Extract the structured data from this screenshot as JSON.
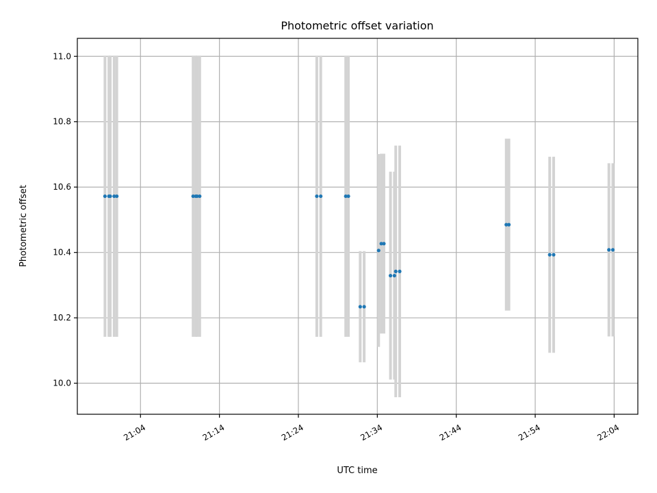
{
  "chart_data": {
    "type": "scatter",
    "title": "Photometric offset variation",
    "xlabel": "UTC time",
    "ylabel": "Photometric offset",
    "xlim": [
      "20:56:00",
      "22:07:00"
    ],
    "ylim": [
      9.905,
      11.055
    ],
    "x_ticks": [
      "21:04",
      "21:14",
      "21:24",
      "21:34",
      "21:44",
      "21:54",
      "22:04"
    ],
    "y_ticks": [
      "10.0",
      "10.2",
      "10.4",
      "10.6",
      "10.8",
      "11.0"
    ],
    "grid": true,
    "errorbar_color": "#d3d3d3",
    "marker_color": "#1f77b4",
    "points": [
      {
        "t": "20:59:30",
        "y": 10.572,
        "err": 0.43
      },
      {
        "t": "21:00:00",
        "y": 10.572,
        "err": 0.43
      },
      {
        "t": "21:00:10",
        "y": 10.572,
        "err": 0.43
      },
      {
        "t": "21:00:40",
        "y": 10.572,
        "err": 0.43
      },
      {
        "t": "21:01:00",
        "y": 10.572,
        "err": 0.43
      },
      {
        "t": "21:10:40",
        "y": 10.572,
        "err": 0.43
      },
      {
        "t": "21:11:00",
        "y": 10.572,
        "err": 0.43
      },
      {
        "t": "21:11:10",
        "y": 10.572,
        "err": 0.43
      },
      {
        "t": "21:11:30",
        "y": 10.572,
        "err": 0.43
      },
      {
        "t": "21:26:20",
        "y": 10.572,
        "err": 0.43
      },
      {
        "t": "21:26:50",
        "y": 10.572,
        "err": 0.43
      },
      {
        "t": "21:30:00",
        "y": 10.572,
        "err": 0.43
      },
      {
        "t": "21:30:20",
        "y": 10.572,
        "err": 0.43
      },
      {
        "t": "21:31:50",
        "y": 10.234,
        "err": 0.17
      },
      {
        "t": "21:32:20",
        "y": 10.234,
        "err": 0.17
      },
      {
        "t": "21:34:10",
        "y": 10.406,
        "err": 0.295
      },
      {
        "t": "21:34:30",
        "y": 10.427,
        "err": 0.275
      },
      {
        "t": "21:34:50",
        "y": 10.427,
        "err": 0.275
      },
      {
        "t": "21:35:40",
        "y": 10.329,
        "err": 0.318
      },
      {
        "t": "21:36:10",
        "y": 10.329,
        "err": 0.318
      },
      {
        "t": "21:36:20",
        "y": 10.342,
        "err": 0.385
      },
      {
        "t": "21:36:50",
        "y": 10.342,
        "err": 0.385
      },
      {
        "t": "21:50:20",
        "y": 10.485,
        "err": 0.263
      },
      {
        "t": "21:50:40",
        "y": 10.485,
        "err": 0.263
      },
      {
        "t": "21:55:50",
        "y": 10.393,
        "err": 0.3
      },
      {
        "t": "21:56:20",
        "y": 10.393,
        "err": 0.3
      },
      {
        "t": "22:03:20",
        "y": 10.408,
        "err": 0.265
      },
      {
        "t": "22:03:50",
        "y": 10.408,
        "err": 0.265
      }
    ]
  }
}
